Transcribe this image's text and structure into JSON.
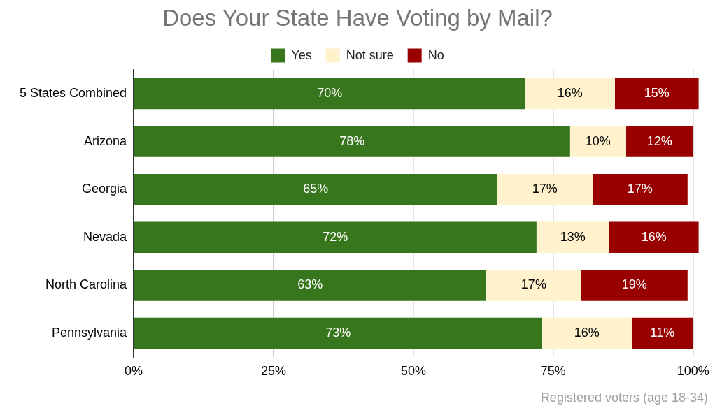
{
  "chart_data": {
    "type": "bar",
    "orientation": "horizontal",
    "stacked": true,
    "title": "Does Your State Have Voting by Mail?",
    "categories": [
      "5 States Combined",
      "Arizona",
      "Georgia",
      "Nevada",
      "North Carolina",
      "Pennsylvania"
    ],
    "series": [
      {
        "name": "Yes",
        "color": "#38761d",
        "values": [
          70,
          78,
          65,
          72,
          63,
          73
        ],
        "value_labels": [
          "70%",
          "78%",
          "65%",
          "72%",
          "63%",
          "73%"
        ]
      },
      {
        "name": "Not sure",
        "color": "#fff2cc",
        "values": [
          16,
          10,
          17,
          13,
          17,
          16
        ],
        "value_labels": [
          "16%",
          "10%",
          "17%",
          "13%",
          "17%",
          "16%"
        ]
      },
      {
        "name": "No",
        "color": "#990000",
        "values": [
          15,
          12,
          17,
          16,
          19,
          11
        ],
        "value_labels": [
          "15%",
          "12%",
          "17%",
          "16%",
          "19%",
          "11%"
        ]
      }
    ],
    "xlim": [
      0,
      101
    ],
    "xticks": [
      {
        "value": 0,
        "label": "0%"
      },
      {
        "value": 25,
        "label": "25%"
      },
      {
        "value": 50,
        "label": "50%"
      },
      {
        "value": 75,
        "label": "75%"
      },
      {
        "value": 100,
        "label": "100%"
      }
    ],
    "grid": "x",
    "legend": "top",
    "annotations": [
      "Registered voters (age 18-34)"
    ]
  }
}
